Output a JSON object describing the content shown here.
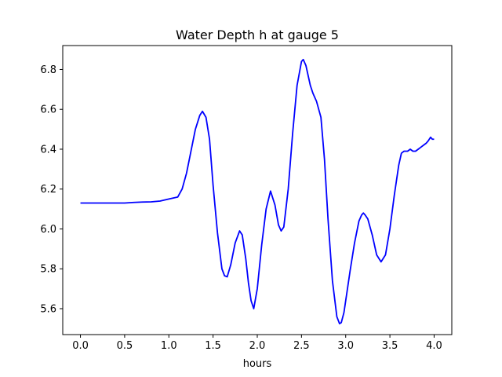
{
  "chart_data": {
    "type": "line",
    "title": "Water Depth h at gauge 5",
    "xlabel": "hours",
    "ylabel": "",
    "xlim": [
      -0.2,
      4.2
    ],
    "ylim": [
      5.47,
      6.92
    ],
    "xticks": [
      0.0,
      0.5,
      1.0,
      1.5,
      2.0,
      2.5,
      3.0,
      3.5,
      4.0
    ],
    "xtick_labels": [
      "0.0",
      "0.5",
      "1.0",
      "1.5",
      "2.0",
      "2.5",
      "3.0",
      "3.5",
      "4.0"
    ],
    "yticks": [
      5.6,
      5.8,
      6.0,
      6.2,
      6.4,
      6.6,
      6.8
    ],
    "ytick_labels": [
      "5.6",
      "5.8",
      "6.0",
      "6.2",
      "6.4",
      "6.6",
      "6.8"
    ],
    "grid": false,
    "series": [
      {
        "color": "#0000ff",
        "x": [
          0.0,
          0.3,
          0.5,
          0.6,
          0.7,
          0.8,
          0.9,
          1.0,
          1.05,
          1.1,
          1.15,
          1.2,
          1.25,
          1.3,
          1.35,
          1.38,
          1.42,
          1.46,
          1.5,
          1.55,
          1.6,
          1.63,
          1.66,
          1.7,
          1.75,
          1.8,
          1.83,
          1.87,
          1.9,
          1.93,
          1.96,
          2.0,
          2.05,
          2.1,
          2.15,
          2.2,
          2.24,
          2.27,
          2.3,
          2.35,
          2.4,
          2.45,
          2.5,
          2.52,
          2.55,
          2.6,
          2.63,
          2.67,
          2.72,
          2.76,
          2.8,
          2.85,
          2.9,
          2.93,
          2.95,
          2.98,
          3.0,
          3.05,
          3.1,
          3.15,
          3.18,
          3.2,
          3.22,
          3.25,
          3.3,
          3.35,
          3.4,
          3.45,
          3.5,
          3.55,
          3.6,
          3.63,
          3.66,
          3.7,
          3.73,
          3.76,
          3.79,
          3.82,
          3.85,
          3.88,
          3.91,
          3.93,
          3.96,
          3.98,
          4.0
        ],
        "y": [
          6.13,
          6.13,
          6.13,
          6.133,
          6.135,
          6.136,
          6.14,
          6.15,
          6.155,
          6.16,
          6.2,
          6.28,
          6.39,
          6.5,
          6.57,
          6.59,
          6.56,
          6.45,
          6.22,
          5.98,
          5.8,
          5.765,
          5.76,
          5.82,
          5.93,
          5.99,
          5.97,
          5.85,
          5.73,
          5.64,
          5.6,
          5.7,
          5.92,
          6.1,
          6.19,
          6.12,
          6.02,
          5.99,
          6.01,
          6.2,
          6.48,
          6.72,
          6.84,
          6.85,
          6.82,
          6.72,
          6.68,
          6.64,
          6.56,
          6.35,
          6.05,
          5.74,
          5.56,
          5.525,
          5.53,
          5.58,
          5.64,
          5.79,
          5.93,
          6.04,
          6.07,
          6.08,
          6.07,
          6.05,
          5.97,
          5.87,
          5.835,
          5.87,
          6.0,
          6.17,
          6.32,
          6.38,
          6.39,
          6.39,
          6.4,
          6.39,
          6.39,
          6.4,
          6.41,
          6.42,
          6.43,
          6.44,
          6.46,
          6.45,
          6.45
        ]
      }
    ]
  }
}
